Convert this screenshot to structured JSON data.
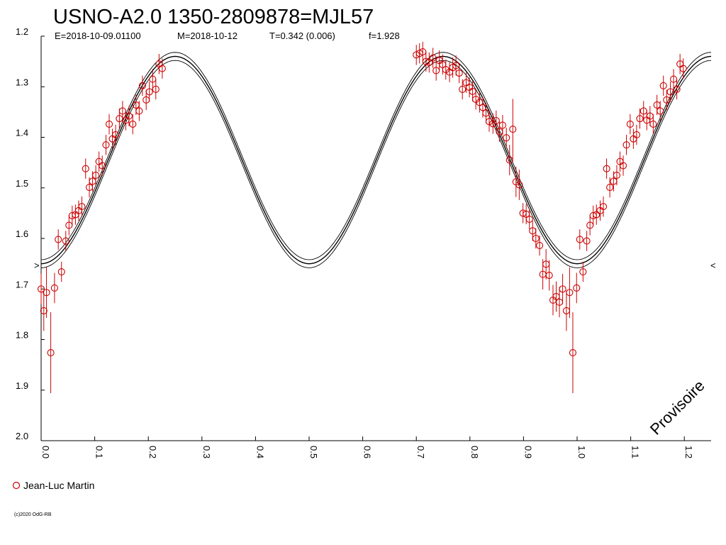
{
  "chart_data": {
    "type": "scatter",
    "title": "USNO-A2.0 1350-2809878=MJL57",
    "subtitle_parts": [
      "E=2018-10-09.01100",
      "M=2018-10-12",
      "T=0.342 (0.006)",
      "f=1.928"
    ],
    "xlim": [
      0.0,
      1.25
    ],
    "ylim": [
      1.2,
      2.0
    ],
    "y_inverted": true,
    "grid": false,
    "x_ticks": [
      "0.0",
      "0.1",
      "0.2",
      "0.3",
      "0.4",
      "0.5",
      "0.6",
      "0.7",
      "0.8",
      "0.9",
      "1.0",
      "1.1",
      "1.2"
    ],
    "y_ticks": [
      "1.2",
      "1.3",
      "1.4",
      "1.5",
      "1.6",
      "1.7",
      "1.8",
      "1.9",
      "2.0"
    ],
    "model": {
      "mean": 1.445,
      "amplitude": 0.205,
      "minimum_phases": [
        0.0,
        0.5,
        1.0
      ],
      "band_offsets": [
        -0.008,
        0.0,
        0.008
      ]
    },
    "edge_markers": [
      ">",
      "<"
    ],
    "series": [
      {
        "name": "Jean-Luc Martin",
        "color": "#cc0000",
        "marker": "open-circle",
        "points": [
          [
            0.0,
            1.7,
            0.03
          ],
          [
            0.005,
            1.743,
            0.04
          ],
          [
            0.01,
            1.707,
            0.05
          ],
          [
            0.018,
            1.826,
            0.08
          ],
          [
            0.025,
            1.698,
            0.03
          ],
          [
            0.032,
            1.602,
            0.02
          ],
          [
            0.038,
            1.666,
            0.02
          ],
          [
            0.046,
            1.605,
            0.02
          ],
          [
            0.052,
            1.574,
            0.02
          ],
          [
            0.058,
            1.555,
            0.02
          ],
          [
            0.064,
            1.553,
            0.02
          ],
          [
            0.07,
            1.545,
            0.02
          ],
          [
            0.076,
            1.537,
            0.02
          ],
          [
            0.083,
            1.462,
            0.02
          ],
          [
            0.09,
            1.499,
            0.02
          ],
          [
            0.096,
            1.487,
            0.02
          ],
          [
            0.102,
            1.475,
            0.02
          ],
          [
            0.108,
            1.448,
            0.02
          ],
          [
            0.114,
            1.456,
            0.02
          ],
          [
            0.121,
            1.415,
            0.02
          ],
          [
            0.127,
            1.374,
            0.02
          ],
          [
            0.133,
            1.403,
            0.02
          ],
          [
            0.139,
            1.395,
            0.02
          ],
          [
            0.146,
            1.363,
            0.02
          ],
          [
            0.152,
            1.348,
            0.02
          ],
          [
            0.158,
            1.366,
            0.02
          ],
          [
            0.164,
            1.358,
            0.02
          ],
          [
            0.171,
            1.374,
            0.02
          ],
          [
            0.177,
            1.336,
            0.02
          ],
          [
            0.183,
            1.348,
            0.02
          ],
          [
            0.189,
            1.298,
            0.02
          ],
          [
            0.196,
            1.326,
            0.02
          ],
          [
            0.202,
            1.31,
            0.02
          ],
          [
            0.208,
            1.285,
            0.02
          ],
          [
            0.214,
            1.305,
            0.02
          ],
          [
            0.22,
            1.255,
            0.02
          ],
          [
            0.226,
            1.264,
            0.02
          ],
          [
            0.7,
            1.237,
            0.02
          ],
          [
            0.706,
            1.234,
            0.02
          ],
          [
            0.712,
            1.231,
            0.02
          ],
          [
            0.718,
            1.25,
            0.02
          ],
          [
            0.724,
            1.252,
            0.02
          ],
          [
            0.731,
            1.243,
            0.02
          ],
          [
            0.737,
            1.268,
            0.02
          ],
          [
            0.743,
            1.248,
            0.02
          ],
          [
            0.749,
            1.256,
            0.02
          ],
          [
            0.755,
            1.266,
            0.02
          ],
          [
            0.762,
            1.271,
            0.02
          ],
          [
            0.768,
            1.262,
            0.02
          ],
          [
            0.774,
            1.258,
            0.02
          ],
          [
            0.78,
            1.273,
            0.02
          ],
          [
            0.786,
            1.305,
            0.02
          ],
          [
            0.793,
            1.292,
            0.02
          ],
          [
            0.799,
            1.301,
            0.02
          ],
          [
            0.805,
            1.309,
            0.02
          ],
          [
            0.811,
            1.325,
            0.02
          ],
          [
            0.818,
            1.331,
            0.02
          ],
          [
            0.824,
            1.341,
            0.02
          ],
          [
            0.83,
            1.352,
            0.02
          ],
          [
            0.836,
            1.369,
            0.02
          ],
          [
            0.843,
            1.373,
            0.02
          ],
          [
            0.849,
            1.367,
            0.02
          ],
          [
            0.855,
            1.389,
            0.02
          ],
          [
            0.861,
            1.376,
            0.02
          ],
          [
            0.868,
            1.401,
            0.02
          ],
          [
            0.874,
            1.445,
            0.03
          ],
          [
            0.88,
            1.384,
            0.06
          ],
          [
            0.886,
            1.488,
            0.03
          ],
          [
            0.892,
            1.494,
            0.03
          ],
          [
            0.899,
            1.55,
            0.02
          ],
          [
            0.905,
            1.552,
            0.02
          ],
          [
            0.911,
            1.562,
            0.02
          ],
          [
            0.917,
            1.585,
            0.02
          ],
          [
            0.923,
            1.6,
            0.02
          ],
          [
            0.93,
            1.614,
            0.02
          ],
          [
            0.936,
            1.671,
            0.03
          ],
          [
            0.942,
            1.651,
            0.03
          ],
          [
            0.948,
            1.673,
            0.03
          ],
          [
            0.955,
            1.722,
            0.03
          ],
          [
            0.961,
            1.715,
            0.03
          ],
          [
            0.967,
            1.726,
            0.03
          ],
          [
            0.973,
            1.7,
            0.03
          ],
          [
            0.98,
            1.743,
            0.04
          ],
          [
            0.986,
            1.707,
            0.05
          ],
          [
            0.992,
            1.826,
            0.08
          ],
          [
            0.999,
            1.698,
            0.03
          ],
          [
            1.005,
            1.602,
            0.02
          ],
          [
            1.011,
            1.666,
            0.02
          ],
          [
            1.018,
            1.605,
            0.02
          ],
          [
            1.024,
            1.574,
            0.02
          ],
          [
            1.03,
            1.555,
            0.02
          ],
          [
            1.036,
            1.553,
            0.02
          ],
          [
            1.043,
            1.545,
            0.02
          ],
          [
            1.049,
            1.537,
            0.02
          ],
          [
            1.055,
            1.462,
            0.02
          ],
          [
            1.061,
            1.499,
            0.02
          ],
          [
            1.068,
            1.487,
            0.02
          ],
          [
            1.074,
            1.475,
            0.02
          ],
          [
            1.08,
            1.448,
            0.02
          ],
          [
            1.086,
            1.456,
            0.02
          ],
          [
            1.092,
            1.415,
            0.02
          ],
          [
            1.099,
            1.374,
            0.02
          ],
          [
            1.105,
            1.403,
            0.02
          ],
          [
            1.111,
            1.395,
            0.02
          ],
          [
            1.117,
            1.363,
            0.02
          ],
          [
            1.124,
            1.348,
            0.02
          ],
          [
            1.13,
            1.366,
            0.02
          ],
          [
            1.136,
            1.358,
            0.02
          ],
          [
            1.142,
            1.374,
            0.02
          ],
          [
            1.149,
            1.336,
            0.02
          ],
          [
            1.155,
            1.348,
            0.02
          ],
          [
            1.161,
            1.298,
            0.02
          ],
          [
            1.167,
            1.326,
            0.02
          ],
          [
            1.174,
            1.31,
            0.02
          ],
          [
            1.18,
            1.285,
            0.02
          ],
          [
            1.186,
            1.305,
            0.02
          ],
          [
            1.192,
            1.255,
            0.02
          ],
          [
            1.198,
            1.264,
            0.02
          ]
        ]
      }
    ],
    "legend": {
      "label": "Jean-Luc Martin",
      "placement": "bottom-left"
    },
    "watermark": "Provisoire",
    "copyright": "(c)2020 OdG-RB"
  }
}
